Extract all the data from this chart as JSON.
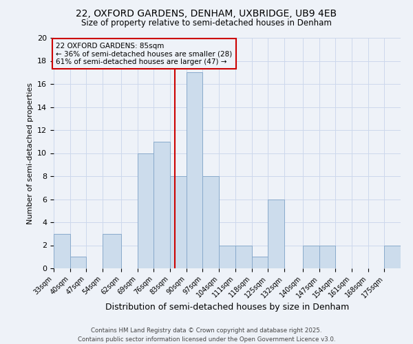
{
  "title1": "22, OXFORD GARDENS, DENHAM, UXBRIDGE, UB9 4EB",
  "title2": "Size of property relative to semi-detached houses in Denham",
  "xlabel": "Distribution of semi-detached houses by size in Denham",
  "ylabel": "Number of semi-detached properties",
  "bin_labels": [
    "33sqm",
    "40sqm",
    "47sqm",
    "54sqm",
    "62sqm",
    "69sqm",
    "76sqm",
    "83sqm",
    "90sqm",
    "97sqm",
    "104sqm",
    "111sqm",
    "118sqm",
    "125sqm",
    "132sqm",
    "140sqm",
    "147sqm",
    "154sqm",
    "161sqm",
    "168sqm",
    "175sqm"
  ],
  "bin_edges": [
    33,
    40,
    47,
    54,
    62,
    69,
    76,
    83,
    90,
    97,
    104,
    111,
    118,
    125,
    132,
    140,
    147,
    154,
    161,
    168,
    175,
    182
  ],
  "bar_heights": [
    3,
    1,
    0,
    3,
    0,
    10,
    11,
    8,
    17,
    8,
    2,
    2,
    1,
    6,
    0,
    2,
    2,
    0,
    0,
    0,
    2
  ],
  "bar_facecolor": "#ccdcec",
  "bar_edgecolor": "#88aacc",
  "vline_color": "#cc0000",
  "vline_x": 85,
  "annotation_title": "22 OXFORD GARDENS: 85sqm",
  "annotation_line1": "← 36% of semi-detached houses are smaller (28)",
  "annotation_line2": "61% of semi-detached houses are larger (47) →",
  "annotation_box_color": "#cc0000",
  "ylim": [
    0,
    20
  ],
  "yticks": [
    0,
    2,
    4,
    6,
    8,
    10,
    12,
    14,
    16,
    18,
    20
  ],
  "grid_color": "#ccd8ec",
  "background_color": "#eef2f8",
  "footer": "Contains HM Land Registry data © Crown copyright and database right 2025.\nContains public sector information licensed under the Open Government Licence v3.0."
}
